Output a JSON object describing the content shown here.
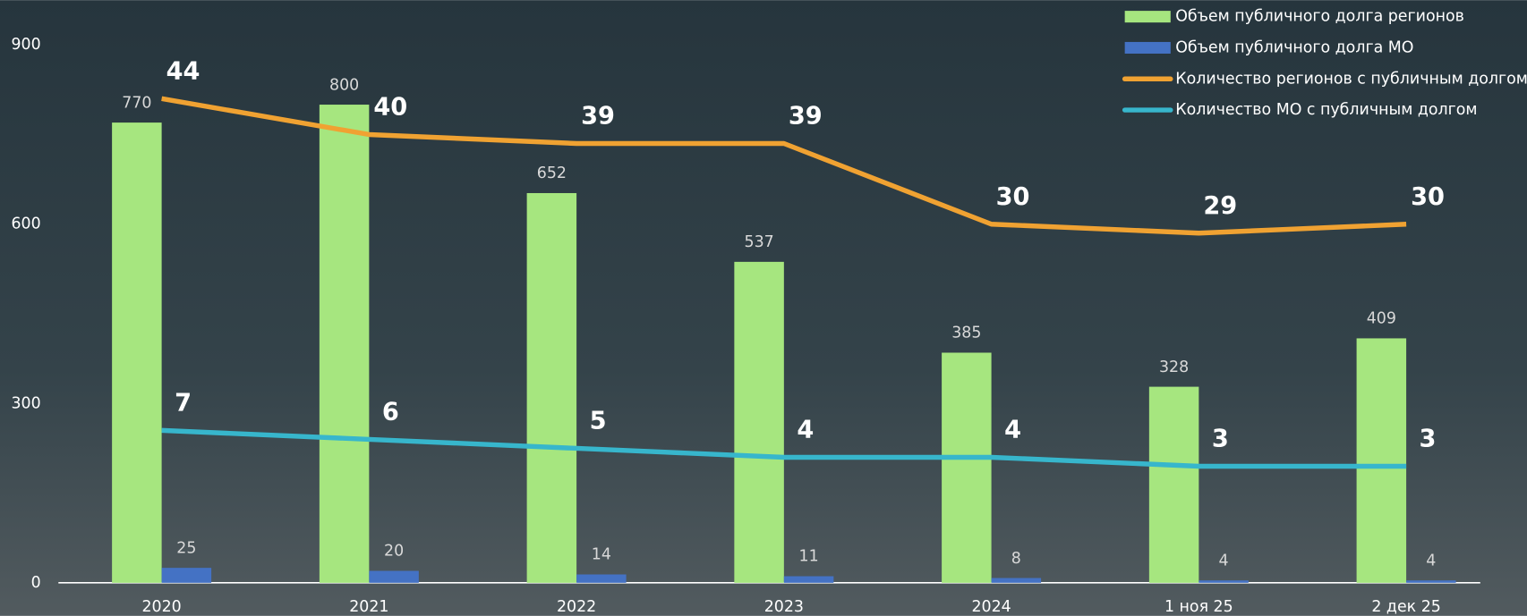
{
  "chart_data": {
    "type": "bar",
    "categories": [
      "2020",
      "2021",
      "2022",
      "2023",
      "2024",
      "1 ноя 25",
      "2 дек 25"
    ],
    "series": [
      {
        "name": "Объем публичного долга регионов",
        "type": "bar",
        "color": "#a6e67f",
        "values": [
          770,
          800,
          652,
          537,
          385,
          328,
          409
        ]
      },
      {
        "name": "Объем публичного долга МО",
        "type": "bar",
        "color": "#4472c4",
        "values": [
          25,
          20,
          14,
          11,
          8,
          4,
          4
        ]
      },
      {
        "name": "Количество регионов с публичным долгом",
        "type": "line",
        "axis": "y2",
        "color": "#f0a232",
        "values": [
          44,
          40,
          39,
          39,
          30,
          29,
          30
        ]
      },
      {
        "name": "Количество МО с публичным долгом",
        "type": "line",
        "axis": "y2",
        "color": "#37b6cc",
        "values": [
          7,
          6,
          5,
          4,
          4,
          3,
          3
        ]
      }
    ],
    "ylim": [
      0,
      900
    ],
    "yticks": [
      0,
      300,
      600,
      900
    ],
    "y2lim": [
      -10,
      50
    ],
    "legend": "top-right"
  }
}
